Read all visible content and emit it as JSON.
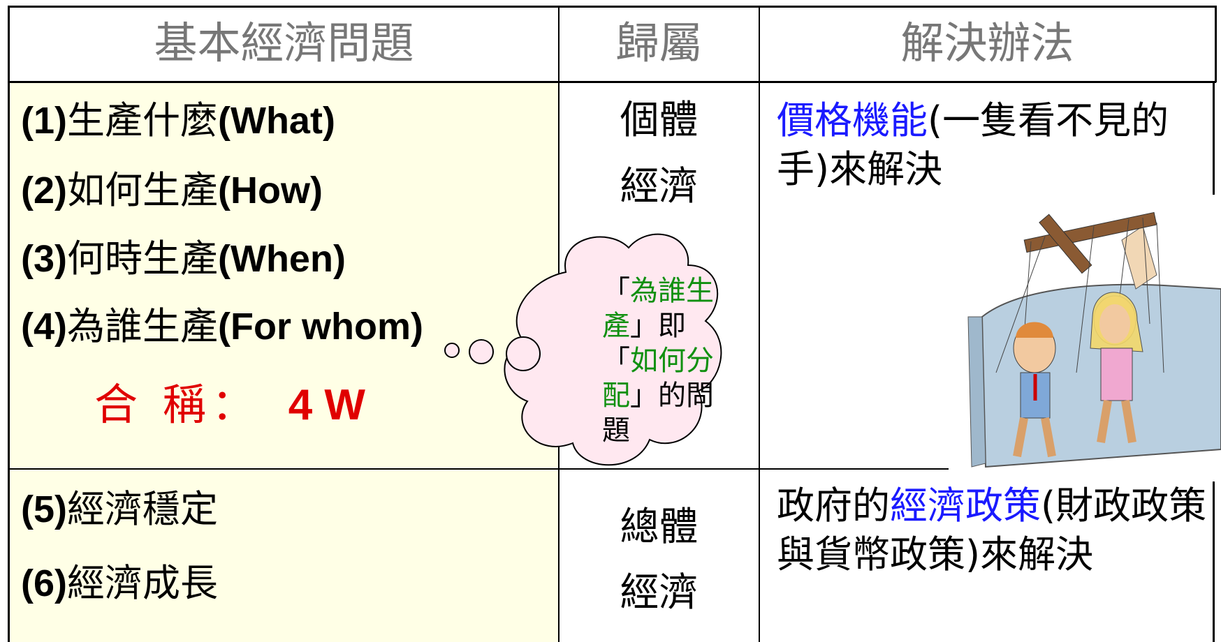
{
  "header": [
    "基本經濟問題",
    "歸屬",
    "解決辦法"
  ],
  "rows": [
    {
      "problems": [
        [
          "(1)",
          "生產什麼",
          "(What)"
        ],
        [
          "(2)",
          "如何生產",
          "(How)"
        ],
        [
          "(3)",
          "何時生產",
          "(When)"
        ],
        [
          "(4)",
          "為誰生產",
          "(For whom)"
        ]
      ],
      "summary": [
        "合 稱：",
        "4 W"
      ],
      "category": [
        "個體",
        "經濟"
      ],
      "solution": [
        "價格機能",
        "(一隻看不見的手)來解決"
      ],
      "note": [
        "「",
        "為誰生產",
        "」即",
        "「",
        "如何分配",
        "」的問題"
      ]
    },
    {
      "problems": [
        [
          "(5)",
          "經濟穩定"
        ],
        [
          "(6)",
          "經濟成長"
        ]
      ],
      "category": [
        "總體",
        "經濟"
      ],
      "solution": [
        "政府的",
        "經濟政策",
        "(財政政策與貨幣政策)來解決"
      ]
    }
  ]
}
